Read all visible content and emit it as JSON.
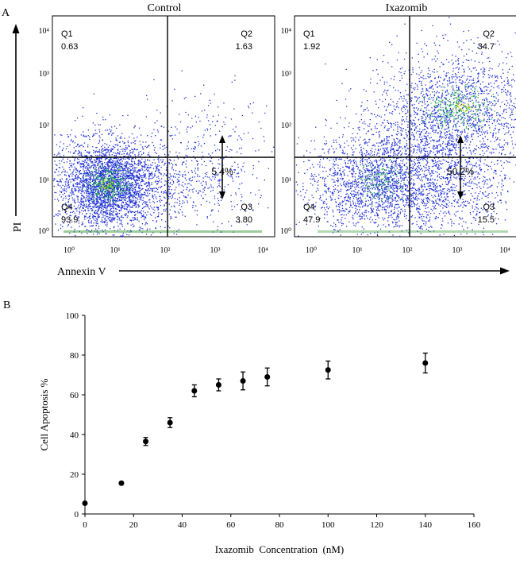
{
  "colors": {
    "background": "#ffffff",
    "axis": "#000000",
    "dot": "#1f2fd6",
    "dense": "#22b04a",
    "densest": "#e0e000"
  },
  "panel_a": {
    "label": "A",
    "y_axis_title": "PI",
    "x_axis_title": "Annexin V",
    "log_ticks": [
      "10⁰",
      "10¹",
      "10²",
      "10³",
      "10⁴"
    ],
    "plots": [
      {
        "title": "Control",
        "quadrants": {
          "q1": {
            "name": "Q1",
            "value": "0.63"
          },
          "q2": {
            "name": "Q2",
            "value": "1.63"
          },
          "q3": {
            "name": "Q3",
            "value": "3.80"
          },
          "q4": {
            "name": "Q4",
            "value": "93.9"
          }
        },
        "apoptosis_total": "5.4%"
      },
      {
        "title": "Ixazomib",
        "quadrants": {
          "q1": {
            "name": "Q1",
            "value": "1.92"
          },
          "q2": {
            "name": "Q2",
            "value": "34.7"
          },
          "q3": {
            "name": "Q3",
            "value": "15.5"
          },
          "q4": {
            "name": "Q4",
            "value": "47.9"
          }
        },
        "apoptosis_total": "50.2%"
      }
    ]
  },
  "panel_b": {
    "label": "B"
  },
  "chart_data": {
    "type": "scatter",
    "title": "",
    "xlabel": "Ixazomib  Concentration  (nM)",
    "ylabel": "Cell Apoptosis %",
    "xlim": [
      0,
      160
    ],
    "ylim": [
      0,
      100
    ],
    "xticks": [
      0,
      20,
      40,
      60,
      80,
      100,
      120,
      140,
      160
    ],
    "yticks": [
      0,
      20,
      40,
      60,
      80,
      100
    ],
    "grid": false,
    "series": [
      {
        "name": "Cell Apoptosis",
        "x": [
          0,
          15,
          25,
          35,
          45,
          55,
          65,
          75,
          100,
          140
        ],
        "y": [
          5.4,
          15.5,
          36.5,
          46,
          62,
          65,
          67,
          69,
          72.5,
          76
        ],
        "error": [
          0.5,
          0.5,
          2,
          2.5,
          3,
          3,
          4.5,
          4.5,
          4.5,
          5
        ]
      }
    ]
  }
}
